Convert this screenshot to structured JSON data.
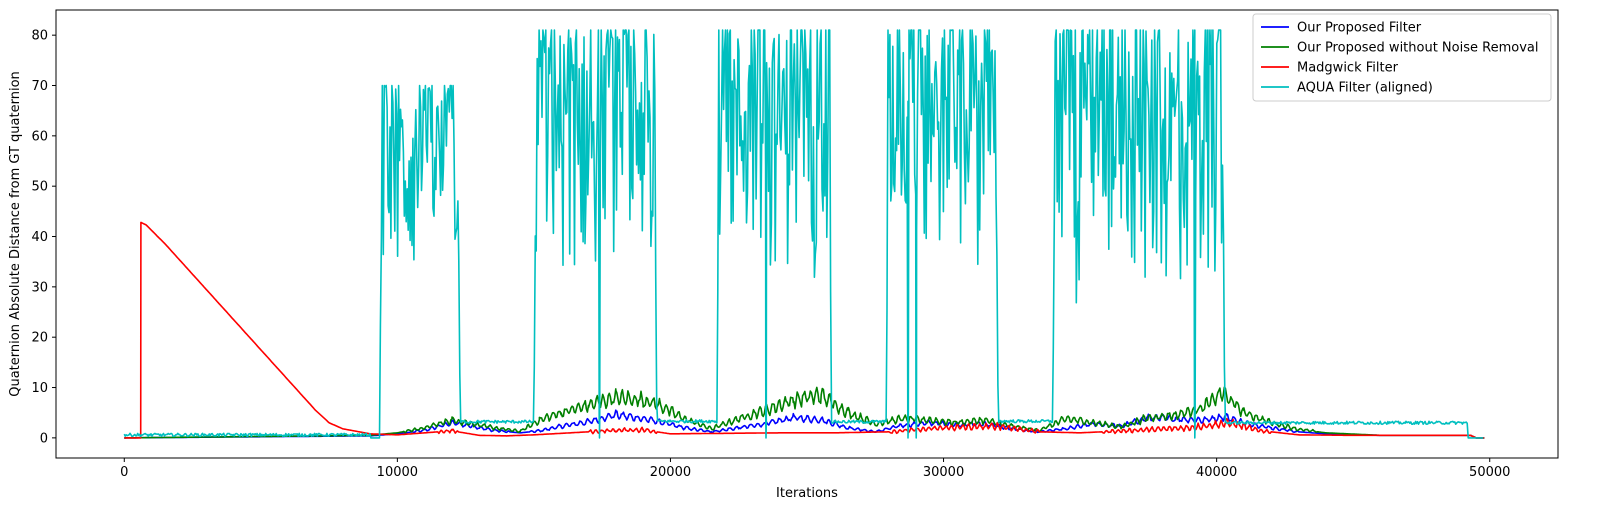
{
  "chart_data": {
    "type": "line",
    "title": "",
    "xlabel": "Iterations",
    "ylabel": "Quaternion Absolute Distance from GT quaternion",
    "xlim": [
      -2500,
      52500
    ],
    "ylim": [
      -4,
      85
    ],
    "xticks": [
      0,
      10000,
      20000,
      30000,
      40000,
      50000
    ],
    "yticks": [
      0,
      10,
      20,
      30,
      40,
      50,
      60,
      70,
      80
    ],
    "grid": false,
    "legend_position": "top-right",
    "series": [
      {
        "name": "Our Proposed Filter",
        "color": "#0000ff",
        "kind": "proposed",
        "points": [
          [
            0,
            0
          ],
          [
            9000,
            0.4
          ],
          [
            10000,
            0.8
          ],
          [
            11000,
            1.5
          ],
          [
            12000,
            3.0
          ],
          [
            12600,
            2.5
          ],
          [
            13500,
            1.5
          ],
          [
            14500,
            1.0
          ],
          [
            15200,
            1.4
          ],
          [
            16000,
            2.3
          ],
          [
            17000,
            3.2
          ],
          [
            18000,
            4.6
          ],
          [
            19000,
            3.8
          ],
          [
            19600,
            3.2
          ],
          [
            20500,
            2.0
          ],
          [
            21500,
            1.2
          ],
          [
            22500,
            2.0
          ],
          [
            23500,
            2.8
          ],
          [
            24500,
            4.0
          ],
          [
            25500,
            3.6
          ],
          [
            26500,
            2.0
          ],
          [
            27500,
            1.2
          ],
          [
            28500,
            2.5
          ],
          [
            29500,
            3.0
          ],
          [
            30500,
            2.6
          ],
          [
            31500,
            2.8
          ],
          [
            32500,
            1.8
          ],
          [
            33500,
            1.2
          ],
          [
            34500,
            1.8
          ],
          [
            35500,
            2.8
          ],
          [
            36500,
            2.3
          ],
          [
            37500,
            4.0
          ],
          [
            38500,
            3.8
          ],
          [
            39500,
            3.5
          ],
          [
            40300,
            4.2
          ],
          [
            41000,
            3.0
          ],
          [
            42000,
            2.0
          ],
          [
            43000,
            1.2
          ],
          [
            44000,
            0.8
          ],
          [
            46000,
            0.5
          ],
          [
            49300,
            0.5
          ],
          [
            49500,
            0
          ],
          [
            49800,
            0
          ]
        ]
      },
      {
        "name": "Our Proposed without Noise Removal",
        "color": "#008000",
        "kind": "noisy",
        "points": [
          [
            0,
            0
          ],
          [
            9000,
            0.5
          ],
          [
            10000,
            1.0
          ],
          [
            11000,
            2.0
          ],
          [
            12000,
            3.5
          ],
          [
            12600,
            3.0
          ],
          [
            13500,
            2.0
          ],
          [
            14500,
            1.3
          ],
          [
            15200,
            3.5
          ],
          [
            16000,
            5.0
          ],
          [
            17000,
            6.5
          ],
          [
            18000,
            8.0
          ],
          [
            19000,
            7.5
          ],
          [
            19600,
            6.5
          ],
          [
            20500,
            3.8
          ],
          [
            21500,
            1.8
          ],
          [
            22500,
            3.8
          ],
          [
            23500,
            5.5
          ],
          [
            24500,
            7.5
          ],
          [
            25500,
            8.5
          ],
          [
            26500,
            5.0
          ],
          [
            27500,
            2.8
          ],
          [
            28500,
            3.8
          ],
          [
            29500,
            3.5
          ],
          [
            30500,
            3.0
          ],
          [
            31500,
            3.5
          ],
          [
            32500,
            2.3
          ],
          [
            33500,
            1.5
          ],
          [
            34500,
            3.8
          ],
          [
            35500,
            3.0
          ],
          [
            36500,
            2.2
          ],
          [
            37500,
            4.0
          ],
          [
            38500,
            4.5
          ],
          [
            39500,
            6.0
          ],
          [
            40200,
            9.0
          ],
          [
            41000,
            5.0
          ],
          [
            42000,
            3.0
          ],
          [
            43000,
            1.7
          ],
          [
            44000,
            1.0
          ],
          [
            46000,
            0.5
          ],
          [
            49300,
            0.5
          ],
          [
            49500,
            0
          ],
          [
            49800,
            0
          ]
        ]
      },
      {
        "name": "Madgwick Filter",
        "color": "#ff0000",
        "kind": "madgwick",
        "points": [
          [
            0,
            0
          ],
          [
            600,
            0
          ],
          [
            610,
            42.8
          ],
          [
            800,
            42.3
          ],
          [
            1500,
            38.5
          ],
          [
            2500,
            32.5
          ],
          [
            3500,
            26.5
          ],
          [
            4500,
            20.5
          ],
          [
            5500,
            14.5
          ],
          [
            6500,
            8.5
          ],
          [
            7000,
            5.5
          ],
          [
            7500,
            3.0
          ],
          [
            8000,
            1.8
          ],
          [
            9000,
            0.8
          ],
          [
            10000,
            0.6
          ],
          [
            11000,
            1.0
          ],
          [
            12000,
            1.4
          ],
          [
            13000,
            0.5
          ],
          [
            14000,
            0.4
          ],
          [
            15000,
            0.6
          ],
          [
            16000,
            0.9
          ],
          [
            17000,
            1.2
          ],
          [
            18000,
            1.5
          ],
          [
            19000,
            1.6
          ],
          [
            20000,
            0.8
          ],
          [
            22000,
            0.9
          ],
          [
            24000,
            1.0
          ],
          [
            26000,
            1.0
          ],
          [
            28000,
            1.2
          ],
          [
            30000,
            2.0
          ],
          [
            32000,
            2.3
          ],
          [
            33500,
            1.2
          ],
          [
            35000,
            1.0
          ],
          [
            37000,
            1.5
          ],
          [
            39000,
            2.0
          ],
          [
            40500,
            3.0
          ],
          [
            41500,
            1.5
          ],
          [
            43000,
            0.6
          ],
          [
            45000,
            0.5
          ],
          [
            49300,
            0.5
          ],
          [
            49500,
            0
          ],
          [
            49800,
            0
          ]
        ]
      },
      {
        "name": "AQUA Filter (aligned)",
        "color": "#00bfbf",
        "kind": "aqua",
        "regions": [
          {
            "start": 9350,
            "end": 12300,
            "min": 12,
            "max": 70
          },
          {
            "start": 15000,
            "end": 19500,
            "min": 13,
            "max": 81
          },
          {
            "start": 21700,
            "end": 25900,
            "min": 14,
            "max": 81
          },
          {
            "start": 27900,
            "end": 32000,
            "min": 17,
            "max": 81
          },
          {
            "start": 34000,
            "end": 40300,
            "min": 7,
            "max": 81
          }
        ],
        "baselines": [
          {
            "start": 0,
            "end": 9000,
            "level": 0.6
          },
          {
            "start": 12300,
            "end": 15000,
            "level": 3.2
          },
          {
            "start": 19500,
            "end": 21700,
            "level": 3.3
          },
          {
            "start": 25900,
            "end": 27900,
            "level": 3.2
          },
          {
            "start": 32000,
            "end": 34000,
            "level": 3.3
          },
          {
            "start": 40300,
            "end": 49200,
            "level": 3.0
          }
        ],
        "drops": [
          17400,
          23500,
          28700,
          29000,
          39200
        ]
      }
    ]
  }
}
